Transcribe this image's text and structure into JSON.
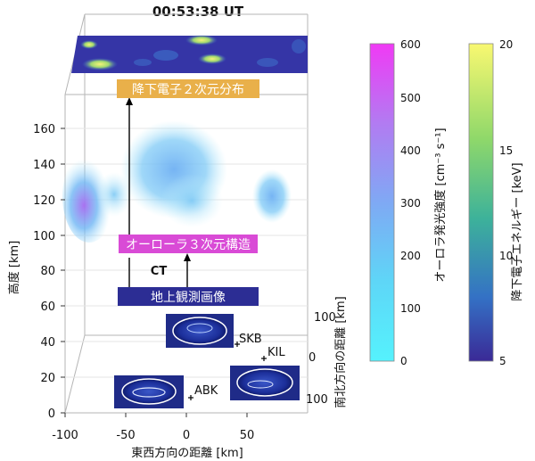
{
  "title": "00:53:38 UT",
  "z_axis": {
    "label": "高度 [km]",
    "ticks": [
      "0",
      "20",
      "40",
      "60",
      "80",
      "100",
      "120",
      "140",
      "160"
    ]
  },
  "x_axis": {
    "label": "東西方向の距離 [km]",
    "ticks": [
      "-100",
      "-50",
      "0",
      "50"
    ]
  },
  "y_axis": {
    "label": "南北方向の距離 [km]",
    "ticks": [
      "100",
      "0",
      "100"
    ]
  },
  "labels": {
    "electron_dist": "降下電子２次元分布",
    "aurora_3d": "オーローラ３次元構造",
    "ground_images": "地上観測画像",
    "ct": "CT"
  },
  "stations": [
    "SKB",
    "KIL",
    "ABK"
  ],
  "colorbars": [
    {
      "label": "オーロラ発光強度 [cm⁻³ s⁻¹]",
      "ticks": [
        "600",
        "500",
        "400",
        "300",
        "200",
        "100",
        "0"
      ],
      "colors": [
        "#f03af5",
        "#b27bf2",
        "#7fa9f4",
        "#5ed6f7",
        "#55f2fd"
      ]
    },
    {
      "label": "降下電子エネルギー [keV]",
      "ticks": [
        "20",
        "15",
        "10",
        "5"
      ],
      "colors": [
        "#f9f871",
        "#8fd86a",
        "#3db29a",
        "#3471c5",
        "#3a2a96"
      ]
    }
  ],
  "colors": {
    "electron_label_bg": "#e9b04a",
    "aurora_label_bg": "#d94bd6",
    "ground_label_bg": "#2c2d94"
  }
}
